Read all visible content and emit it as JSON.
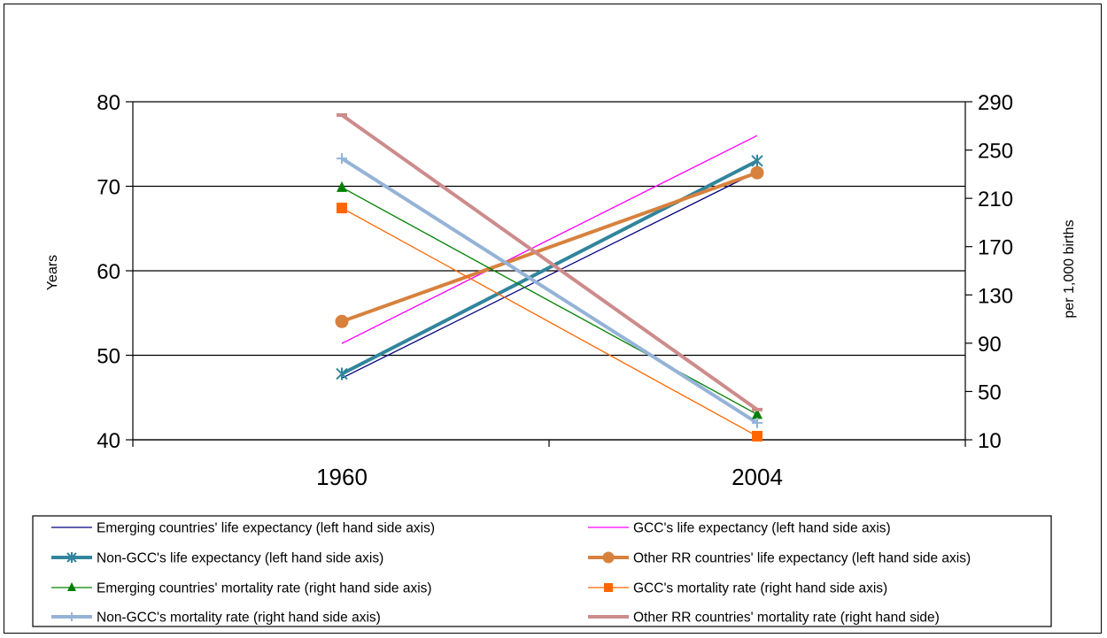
{
  "chart_data": {
    "type": "line",
    "categories": [
      "1960",
      "2004"
    ],
    "y_left": {
      "label": "Years",
      "ylim": [
        40,
        80
      ],
      "ticks": [
        "40",
        "50",
        "60",
        "70",
        "80"
      ]
    },
    "y_right": {
      "label": "per 1,000 births",
      "ylim": [
        10,
        290
      ],
      "ticks": [
        "10",
        "50",
        "90",
        "130",
        "170",
        "210",
        "250",
        "290"
      ]
    },
    "grid": true,
    "legend_position": "bottom",
    "series": [
      {
        "name": "Emerging countries' life expectancy (left hand side axis)",
        "axis": "left",
        "values": [
          47.3,
          71.7
        ],
        "color": "#000080",
        "width": 1.3,
        "marker": "none"
      },
      {
        "name": "GCC's life expectancy (left hand side axis)",
        "axis": "left",
        "values": [
          51.4,
          76.0
        ],
        "color": "#ff00ff",
        "width": 1.3,
        "marker": "none"
      },
      {
        "name": "Non-GCC's life expectancy (left hand side axis)",
        "axis": "left",
        "values": [
          47.8,
          73.0
        ],
        "color": "#31859c",
        "width": 4,
        "marker": "star"
      },
      {
        "name": "Other RR countries' life expectancy (left hand side axis)",
        "axis": "left",
        "values": [
          54.0,
          71.6
        ],
        "color": "#d7813d",
        "width": 4,
        "marker": "circle"
      },
      {
        "name": "Emerging countries' mortality rate (right hand side axis)",
        "axis": "right",
        "values": [
          219,
          31
        ],
        "color": "#008000",
        "width": 1.3,
        "marker": "triangle"
      },
      {
        "name": "GCC's mortality rate (right hand side axis)",
        "axis": "right",
        "values": [
          202,
          13
        ],
        "color": "#ff6600",
        "width": 1.3,
        "marker": "square"
      },
      {
        "name": "Non-GCC's mortality rate (right hand side axis)",
        "axis": "right",
        "values": [
          243,
          24
        ],
        "color": "#95b3d7",
        "width": 4,
        "marker": "plus"
      },
      {
        "name": "Other RR countries' mortality rate (right hand side)",
        "axis": "right",
        "values": [
          279,
          35
        ],
        "color": "#cd8b8b",
        "width": 4,
        "marker": "dash"
      }
    ]
  }
}
